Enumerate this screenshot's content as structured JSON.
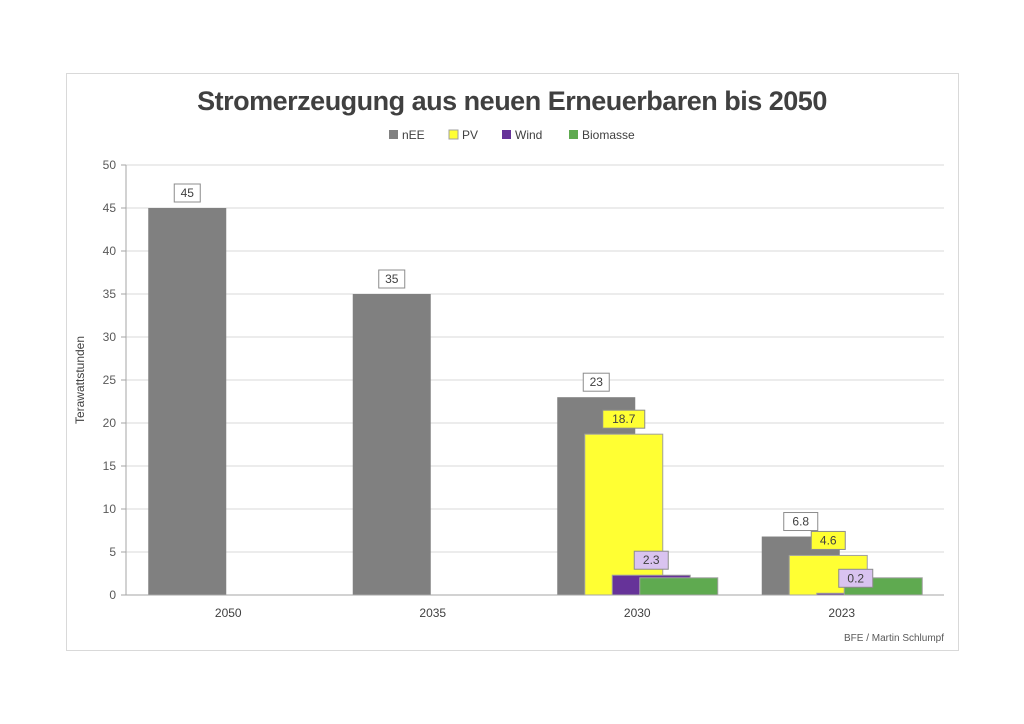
{
  "chart_data": {
    "type": "bar",
    "title": "Stromerzeugung aus neuen Erneuerbaren bis 2050",
    "ylabel": "Terawattstunden",
    "xlabel": "",
    "ylim": [
      0,
      50
    ],
    "yticks": [
      0,
      5,
      10,
      15,
      20,
      25,
      30,
      35,
      40,
      45,
      50
    ],
    "grid": true,
    "legend": "top",
    "categories": [
      "2050",
      "2035",
      "2030",
      "2023"
    ],
    "series": [
      {
        "name": "nEE",
        "color": "#808080",
        "values": [
          45,
          35,
          23,
          6.8
        ],
        "labels": [
          "45",
          "35",
          "23",
          "6.8"
        ],
        "label_bg": "#ffffff"
      },
      {
        "name": "PV",
        "color": "#ffff33",
        "values": [
          0,
          0,
          18.7,
          4.6
        ],
        "labels": [
          "",
          "",
          "18.7",
          "4.6"
        ],
        "label_bg": "#ffff33"
      },
      {
        "name": "Wind",
        "color": "#663399",
        "values": [
          0,
          0,
          2.3,
          0.2
        ],
        "labels": [
          "",
          "",
          "2.3",
          "0.2"
        ],
        "label_bg": "#d9c3f0"
      },
      {
        "name": "Biomasse",
        "color": "#5faa50",
        "values": [
          0,
          0,
          2.0,
          2.0
        ],
        "labels": [
          "",
          "",
          "",
          ""
        ],
        "label_bg": "#ffffff"
      }
    ]
  },
  "credit": "BFE / Martin Schlumpf"
}
